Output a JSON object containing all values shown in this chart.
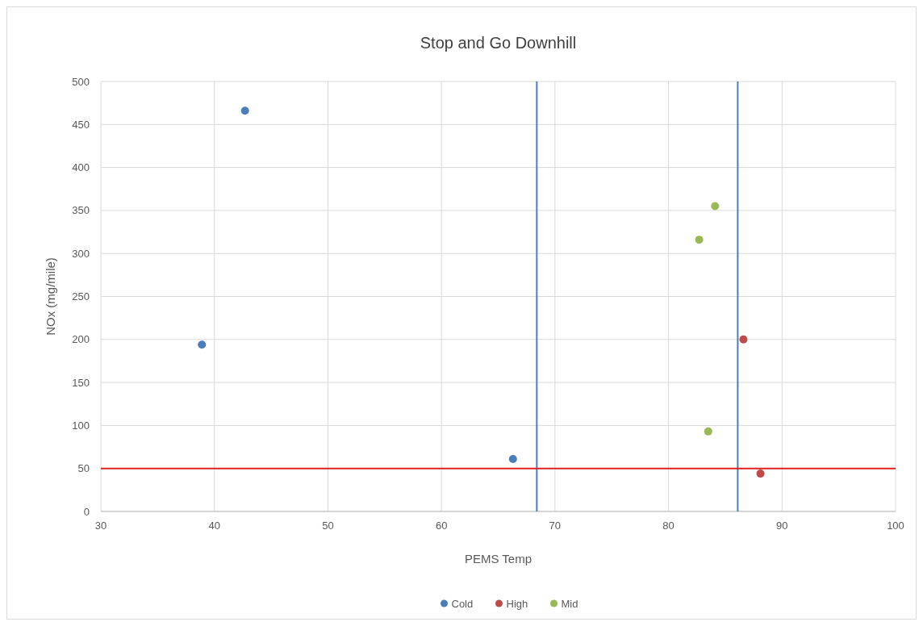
{
  "chart_data": {
    "type": "scatter",
    "title": "Stop and Go Downhill",
    "xlabel": "PEMS Temp",
    "ylabel": "NOx (mg/mile)",
    "xlim": [
      30,
      100
    ],
    "xticks": [
      30,
      40,
      50,
      60,
      70,
      80,
      90,
      100
    ],
    "ylim": [
      0,
      500
    ],
    "yticks": [
      0,
      50,
      100,
      150,
      200,
      250,
      300,
      350,
      400,
      450,
      500
    ],
    "grid": true,
    "legend": "bottom",
    "marker": "circle",
    "series": [
      {
        "name": "Cold",
        "color": "#4a7ebb",
        "x": [
          42.7,
          38.9,
          66.3
        ],
        "values": [
          466,
          194,
          61
        ]
      },
      {
        "name": "High",
        "color": "#be4b48",
        "x": [
          86.6,
          88.1
        ],
        "values": [
          200,
          44
        ]
      },
      {
        "name": "Mid",
        "color": "#98b954",
        "x": [
          84.1,
          82.7,
          83.5
        ],
        "values": [
          355,
          316,
          93
        ]
      }
    ],
    "ref_lines": [
      {
        "axis": "x",
        "value": 68.4,
        "color": "#4a7ebb"
      },
      {
        "axis": "x",
        "value": 86.1,
        "color": "#4a7ebb"
      },
      {
        "axis": "y",
        "value": 50,
        "color": "#e0211d"
      }
    ]
  }
}
